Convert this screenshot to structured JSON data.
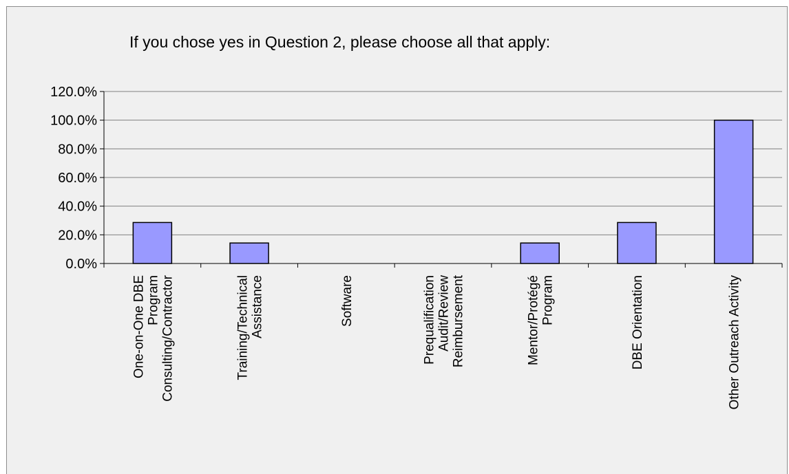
{
  "chart_data": {
    "type": "bar",
    "title": "If you chose yes in Question 2, please choose all that apply:",
    "categories": [
      [
        "One-on-One DBE",
        "Program",
        "Consulting/Contractor"
      ],
      [
        "Training/Technical",
        "Assistance"
      ],
      [
        "Software"
      ],
      [
        "Prequalification",
        "Audit/Review",
        "Reimbursement"
      ],
      [
        "Mentor/Protégé",
        "Program"
      ],
      [
        "DBE Orientation"
      ],
      [
        "Other Outreach Activity"
      ]
    ],
    "values": [
      28.6,
      14.3,
      0,
      0,
      14.3,
      28.6,
      100
    ],
    "ylim": [
      0,
      120
    ],
    "yticks": [
      "0.0%",
      "20.0%",
      "40.0%",
      "60.0%",
      "80.0%",
      "100.0%",
      "120.0%"
    ],
    "grid": true,
    "colors": {
      "bar_fill": "#9999ff",
      "bar_stroke": "#000000",
      "grid": "#808080",
      "background": "#f0f0f0"
    }
  }
}
